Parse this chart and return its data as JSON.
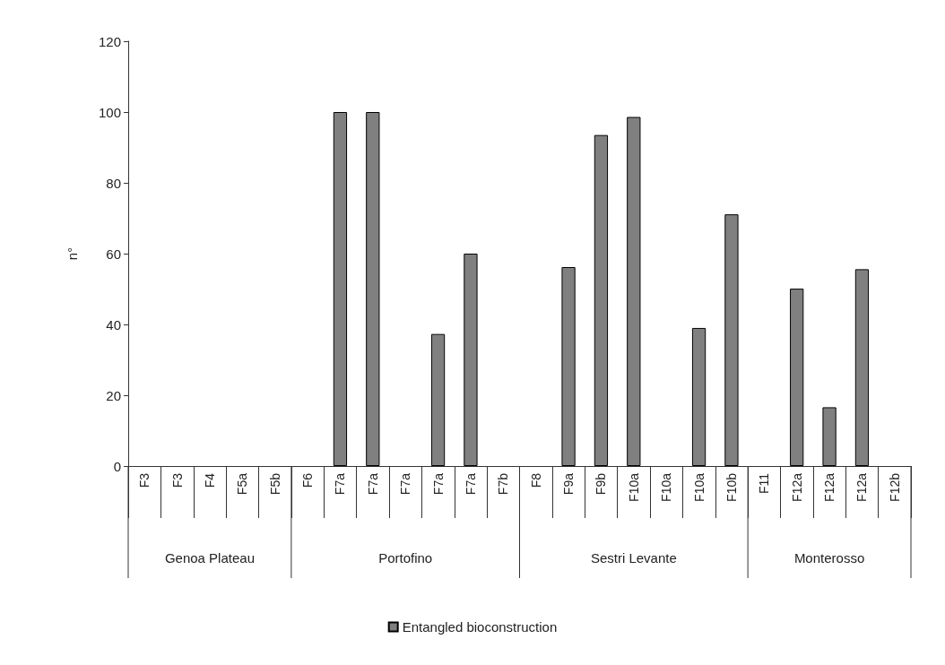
{
  "chart_data": {
    "type": "bar",
    "ylabel": "n°",
    "categories": [
      "F3",
      "F3",
      "F4",
      "F5a",
      "F5b",
      "F6",
      "F7a",
      "F7a",
      "F7a",
      "F7a",
      "F7a",
      "F7b",
      "F8",
      "F9a",
      "F9b",
      "F10a",
      "F10a",
      "F10a",
      "F10b",
      "F11",
      "F12a",
      "F12a",
      "F12a",
      "F12b"
    ],
    "series": [
      {
        "name": "Entangled bioconstruction",
        "color": "#808080",
        "values": [
          0,
          0,
          0,
          0,
          0,
          0,
          100,
          100,
          0,
          37.3,
          60,
          0,
          0,
          56.2,
          93.5,
          98.6,
          0,
          39,
          71.1,
          0,
          50.1,
          16.6,
          55.6,
          0
        ]
      }
    ],
    "ylim": [
      0,
      120
    ],
    "yticks": [
      0,
      20,
      40,
      60,
      80,
      100,
      120
    ],
    "grid": false,
    "legend": "bottom",
    "annotations": [
      "Genoa Plateau",
      "Portofino",
      "Sestri Levante",
      "Monterosso"
    ]
  }
}
